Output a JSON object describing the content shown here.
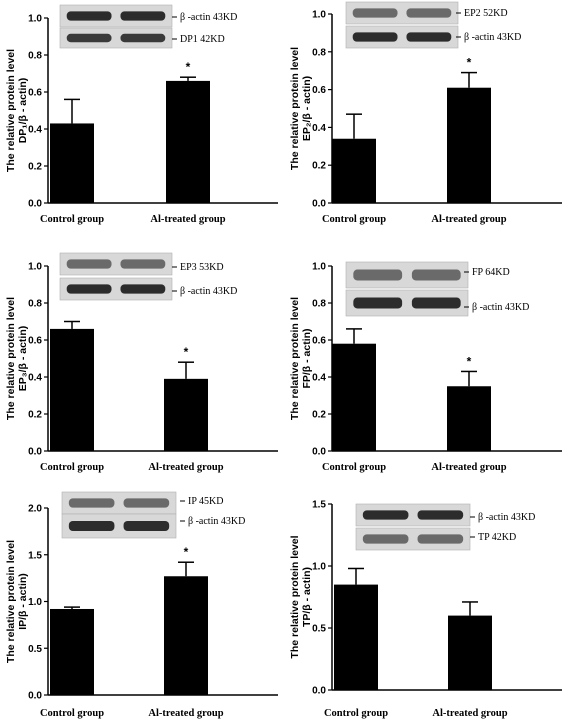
{
  "figure": {
    "y_axis_title": "The relative protein level",
    "categories": [
      "Control group",
      "Al-treated group"
    ],
    "significance_mark": "*"
  },
  "chart_data": [
    {
      "type": "bar",
      "ylabel": "DP₁/β - actin)",
      "categories": [
        "Control group",
        "Al-treated group"
      ],
      "values": [
        0.43,
        0.66
      ],
      "errors": [
        0.13,
        0.02
      ],
      "ylim": [
        0.0,
        1.0
      ],
      "yticks": [
        "0.0",
        "0.2",
        "0.4",
        "0.6",
        "0.8",
        "1.0"
      ],
      "significant": [
        false,
        true
      ],
      "blot_bands": [
        {
          "protein": "β -actin",
          "kd": "43KD"
        },
        {
          "protein": "DP1",
          "kd": "42KD"
        }
      ]
    },
    {
      "type": "bar",
      "ylabel": "EP₂/β - actin)",
      "categories": [
        "Control group",
        "Al-treated group"
      ],
      "values": [
        0.34,
        0.61
      ],
      "errors": [
        0.13,
        0.08
      ],
      "ylim": [
        0.0,
        1.0
      ],
      "yticks": [
        "0.0",
        "0.2",
        "0.4",
        "0.6",
        "0.8",
        "1.0"
      ],
      "significant": [
        false,
        true
      ],
      "blot_bands": [
        {
          "protein": "EP2",
          "kd": "52KD"
        },
        {
          "protein": "β -actin",
          "kd": "43KD"
        }
      ]
    },
    {
      "type": "bar",
      "ylabel": "EP₃/β - actin)",
      "categories": [
        "Control group",
        "Al-treated group"
      ],
      "values": [
        0.66,
        0.39
      ],
      "errors": [
        0.04,
        0.09
      ],
      "ylim": [
        0.0,
        1.0
      ],
      "yticks": [
        "0.0",
        "0.2",
        "0.4",
        "0.6",
        "0.8",
        "1.0"
      ],
      "significant": [
        false,
        true
      ],
      "blot_bands": [
        {
          "protein": "EP3",
          "kd": "53KD"
        },
        {
          "protein": "β -actin",
          "kd": "43KD"
        }
      ]
    },
    {
      "type": "bar",
      "ylabel": "FP/β - actin)",
      "categories": [
        "Control group",
        "Al-treated group"
      ],
      "values": [
        0.58,
        0.35
      ],
      "errors": [
        0.08,
        0.08
      ],
      "ylim": [
        0.0,
        1.0
      ],
      "yticks": [
        "0.0",
        "0.2",
        "0.4",
        "0.6",
        "0.8",
        "1.0"
      ],
      "significant": [
        false,
        true
      ],
      "blot_bands": [
        {
          "protein": "FP",
          "kd": "64KD"
        },
        {
          "protein": "β -actin",
          "kd": "43KD"
        }
      ]
    },
    {
      "type": "bar",
      "ylabel": "IP/β - actin)",
      "categories": [
        "Control group",
        "Al-treated group"
      ],
      "values": [
        0.92,
        1.27
      ],
      "errors": [
        0.02,
        0.15
      ],
      "ylim": [
        0.0,
        2.0
      ],
      "yticks": [
        "0.0",
        "0.5",
        "1.0",
        "1.5",
        "2.0"
      ],
      "significant": [
        false,
        true
      ],
      "blot_bands": [
        {
          "protein": "IP",
          "kd": "45KD"
        },
        {
          "protein": "β -actin",
          "kd": "43KD"
        }
      ]
    },
    {
      "type": "bar",
      "ylabel": "TP/β - actin)",
      "categories": [
        "Control group",
        "Al-treated group"
      ],
      "values": [
        0.85,
        0.6
      ],
      "errors": [
        0.13,
        0.11
      ],
      "ylim": [
        0.0,
        1.5
      ],
      "yticks": [
        "0.0",
        "0.5",
        "1.0",
        "1.5"
      ],
      "significant": [
        false,
        false
      ],
      "blot_bands": [
        {
          "protein": "β -actin",
          "kd": "43KD"
        },
        {
          "protein": "TP",
          "kd": "42KD"
        }
      ]
    }
  ]
}
